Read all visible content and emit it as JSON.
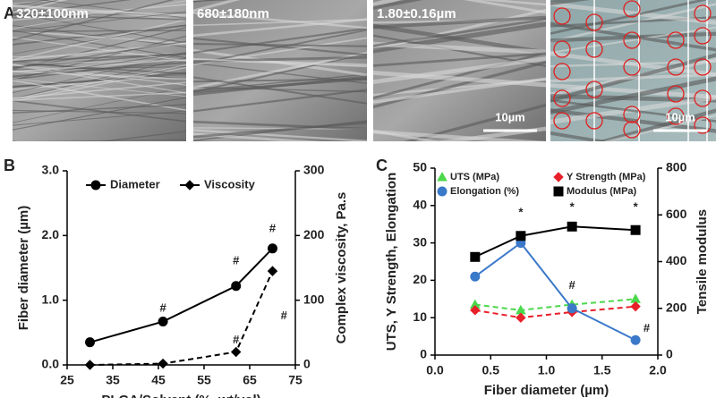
{
  "panel_labels": [
    "A",
    "B",
    "C"
  ],
  "images": [
    {
      "label": "320±100nm"
    },
    {
      "label": "680±180nm"
    },
    {
      "label": "1.80±0.16µm",
      "scale_bar": "10µm"
    },
    {
      "scale_bar": "10µm"
    }
  ],
  "chart_data": [
    {
      "type": "line",
      "x_label": "PLGA/Solvent (%, wt/vol)",
      "y_label": "Fiber diameter (µm)",
      "y2_label": "Complex viscosity, Pa.s",
      "x": [
        30,
        46,
        62,
        70
      ],
      "xlim": [
        25,
        75
      ],
      "xticks": [
        25,
        35,
        45,
        55,
        65,
        75
      ],
      "ylim": [
        0,
        3
      ],
      "yticks": [
        {
          "value": 0,
          "label": "0.0"
        },
        {
          "value": 1,
          "label": "1.0"
        },
        {
          "value": 2,
          "label": "2.0"
        },
        {
          "value": 3,
          "label": "3.0"
        }
      ],
      "y2lim": [
        0,
        300
      ],
      "y2ticks": [
        0,
        100,
        200,
        300
      ],
      "legend": "top",
      "series": [
        {
          "name": "Diameter",
          "color": "#000000",
          "marker": "circle",
          "dash": false,
          "values": [
            0.35,
            0.67,
            1.22,
            1.8
          ]
        },
        {
          "name": "Viscosity",
          "color": "#000000",
          "marker": "diamond",
          "dash": true,
          "axis": "y2",
          "values": [
            0,
            2,
            20,
            145
          ]
        }
      ],
      "annotations": [
        {
          "text": "#",
          "x": 46,
          "y": 0.87
        },
        {
          "text": "#",
          "x": 62,
          "y": 1.6
        },
        {
          "text": "#",
          "x": 70,
          "y": 2.1
        },
        {
          "text": "#",
          "x": 62,
          "y": 0.38
        },
        {
          "text": "#",
          "x": 72.5,
          "y": 0.75
        }
      ]
    },
    {
      "type": "line",
      "x_label": "Fiber diameter (µm)",
      "y_label": "UTS, Y Strength, Elongation",
      "y2_label": "Tensile modulus",
      "x": [
        0.36,
        0.77,
        1.23,
        1.8
      ],
      "xlim": [
        0,
        2
      ],
      "xticks": [
        {
          "value": 0,
          "label": "0.0"
        },
        {
          "value": 0.5,
          "label": "0.5"
        },
        {
          "value": 1,
          "label": "1.0"
        },
        {
          "value": 1.5,
          "label": "1.5"
        },
        {
          "value": 2,
          "label": "2.0"
        }
      ],
      "ylim": [
        0,
        50
      ],
      "yticks": [
        0,
        10,
        20,
        30,
        40,
        50
      ],
      "y2lim": [
        0,
        800
      ],
      "y2ticks": [
        0,
        200,
        400,
        600,
        800
      ],
      "legend": "top",
      "series": [
        {
          "name": "UTS (MPa)",
          "color": "#4cd84c",
          "marker": "triangle",
          "dash": true,
          "values": [
            13.5,
            12,
            13.5,
            15
          ]
        },
        {
          "name": "Y Strength (MPa)",
          "color": "#e8202a",
          "marker": "diamond",
          "dash": true,
          "values": [
            12,
            10,
            11.5,
            13
          ]
        },
        {
          "name": "Elongation (%)",
          "color": "#3a78c9",
          "marker": "circle",
          "dash": false,
          "values": [
            21,
            30,
            12.5,
            4
          ]
        },
        {
          "name": "Modulus (MPa)",
          "color": "#000000",
          "marker": "square",
          "dash": false,
          "axis": "y2",
          "values": [
            420,
            510,
            550,
            535
          ]
        }
      ],
      "annotations": [
        {
          "text": "*",
          "x": 0.77,
          "y": 38
        },
        {
          "text": "*",
          "x": 1.23,
          "y": 39.5
        },
        {
          "text": "*",
          "x": 1.8,
          "y": 39.5
        },
        {
          "text": "#",
          "x": 1.23,
          "y": 18.5
        },
        {
          "text": "#",
          "x": 1.9,
          "y": 7
        }
      ]
    }
  ]
}
